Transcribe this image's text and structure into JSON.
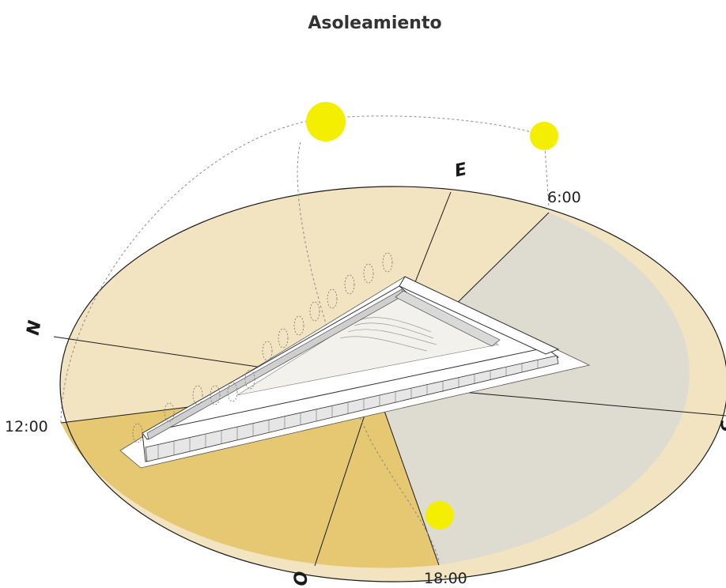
{
  "title": "Asoleamiento",
  "compass": {
    "north": "N",
    "east": "E",
    "south": "S",
    "west": "O"
  },
  "times": {
    "t0600": "6:00",
    "t1200": "12:00",
    "t1800": "18:00"
  },
  "colors": {
    "sector_light": "#f2e4c0",
    "sector_warm": "#e6c872",
    "sector_shade": "#dedbd0",
    "sun": "#f4ee00",
    "building": "#ffffff",
    "building_line": "#444444"
  },
  "icons": [
    "sun-icon",
    "building-axonometric",
    "tree-icon"
  ]
}
